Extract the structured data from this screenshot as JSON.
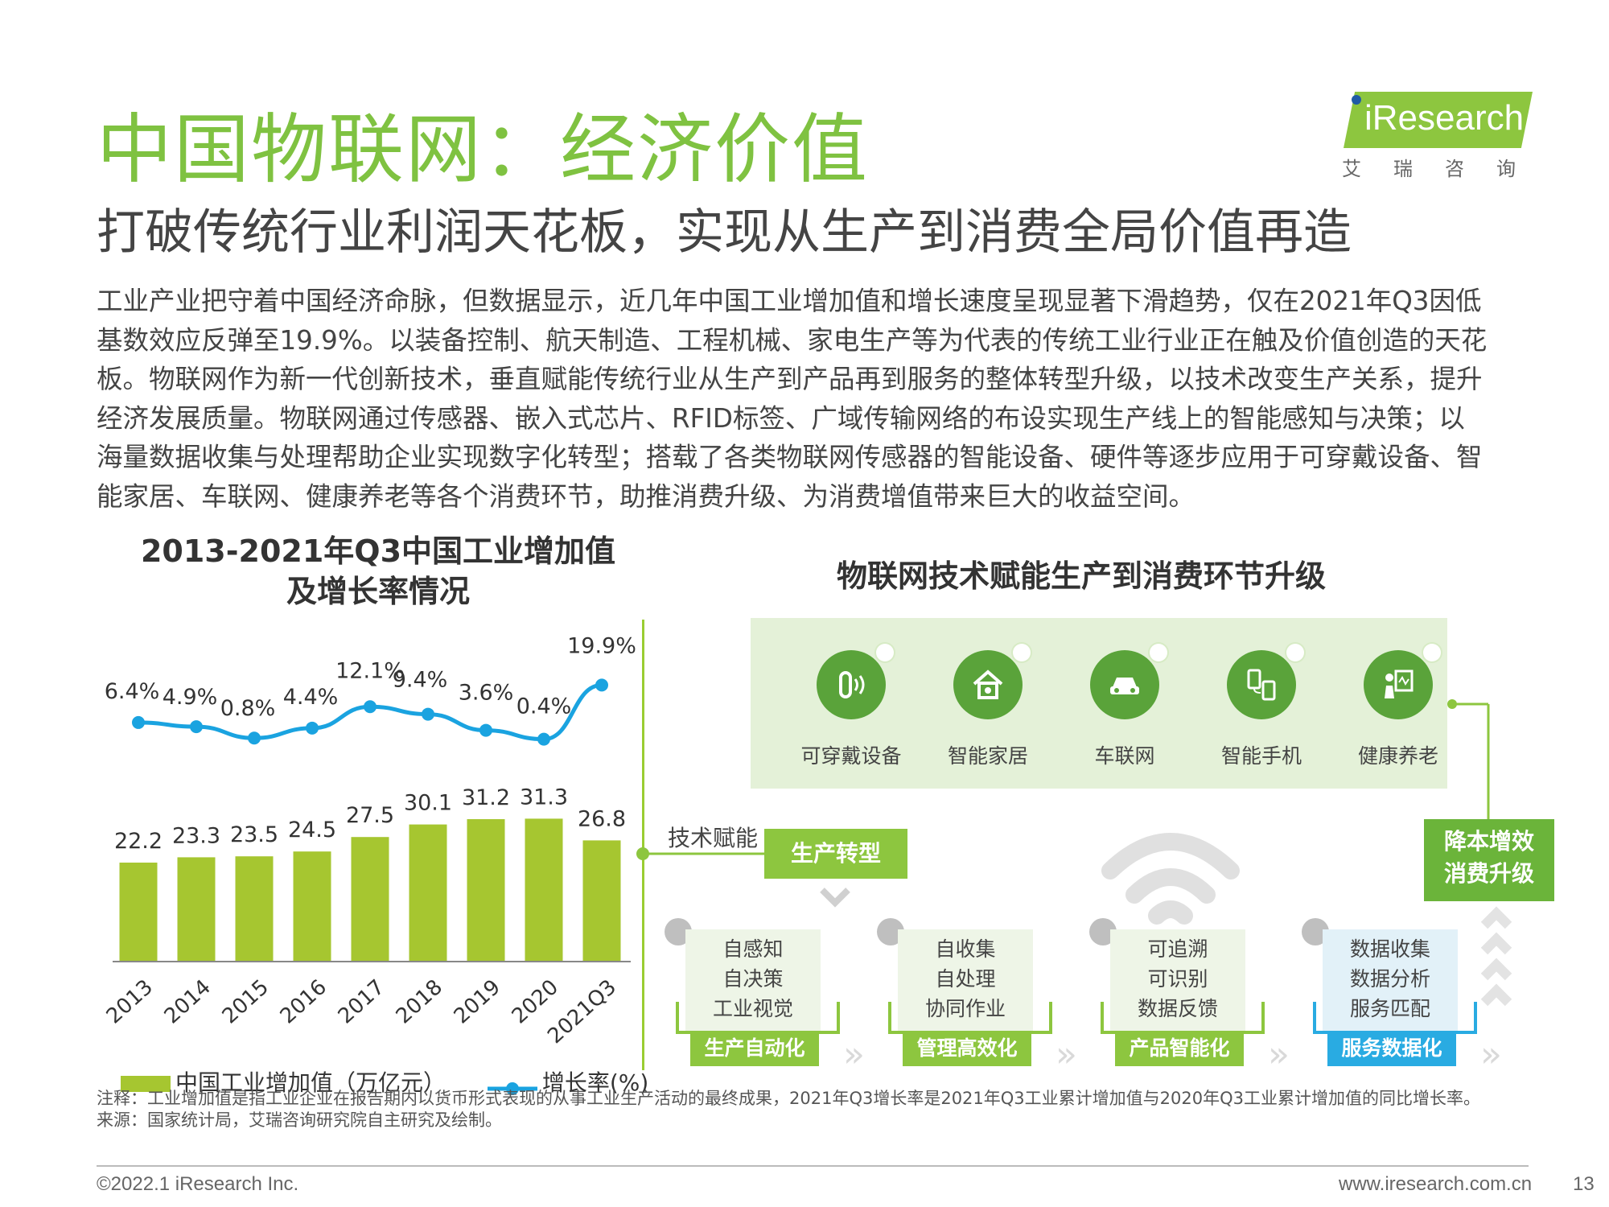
{
  "header": {
    "title": "中国物联网：经济价值",
    "subtitle": "打破传统行业利润天花板，实现从生产到消费全局价值再造",
    "logo_text": "iResearch",
    "logo_sub": "艾瑞咨询"
  },
  "body_text": "工业产业把守着中国经济命脉，但数据显示，近几年中国工业增加值和增长速度呈现显著下滑趋势，仅在2021年Q3因低\n基数效应反弹至19.9%。以装备控制、航天制造、工程机械、家电生产等为代表的传统工业行业正在触及价值创造的天花\n板。物联网作为新一代创新技术，垂直赋能传统行业从生产到产品再到服务的整体转型升级，以技术改变生产关系，提升\n经济发展质量。物联网通过传感器、嵌入式芯片、RFID标签、广域传输网络的布设实现生产线上的智能感知与决策；以\n海量数据收集与处理帮助企业实现数字化转型；搭载了各类物联网传感器的智能设备、硬件等逐步应用于可穿戴设备、智\n能家居、车联网、健康养老等各个消费环节，助推消费升级、为消费增值带来巨大的收益空间。",
  "chart_data": {
    "type": "bar",
    "title": "2013-2021年Q3中国工业增加值\n及增长率情况",
    "categories": [
      "2013",
      "2014",
      "2015",
      "2016",
      "2017",
      "2018",
      "2019",
      "2020",
      "2021Q3"
    ],
    "series": [
      {
        "name": "中国工业增加值（万亿元）",
        "type": "bar",
        "values": [
          22.2,
          23.3,
          23.5,
          24.5,
          27.5,
          30.1,
          31.2,
          31.3,
          26.8
        ],
        "color": "#a6c630"
      },
      {
        "name": "增长率(%)",
        "type": "line",
        "values": [
          6.4,
          4.9,
          0.8,
          4.4,
          12.1,
          9.4,
          3.6,
          0.4,
          19.9
        ],
        "color": "#1aa3e0"
      }
    ],
    "bar_labels": [
      "22.2",
      "23.3",
      "23.5",
      "24.5",
      "27.5",
      "30.1",
      "31.2",
      "31.3",
      "26.8"
    ],
    "line_labels": [
      "6.4%",
      "4.9%",
      "0.8%",
      "4.4%",
      "12.1%",
      "9.4%",
      "3.6%",
      "0.4%",
      "19.9%"
    ],
    "legend_position": "bottom",
    "grid": false
  },
  "legend": {
    "bar": "中国工业增加值（万亿元）",
    "line": "增长率(%)"
  },
  "right": {
    "title": "物联网技术赋能生产到消费环节升级",
    "iot_items": [
      {
        "label": "可穿戴设备",
        "icon": "wearable-icon"
      },
      {
        "label": "智能家居",
        "icon": "smart-home-icon"
      },
      {
        "label": "车联网",
        "icon": "car-icon"
      },
      {
        "label": "智能手机",
        "icon": "smartphone-icon"
      },
      {
        "label": "健康养老",
        "icon": "health-icon"
      }
    ],
    "tech_label": "技术赋能",
    "production_label": "生产转型",
    "goal_label": "降本增效\n消费升级",
    "stages": [
      {
        "text": "自感知\n自决策\n工业视觉",
        "label": "生产自动化"
      },
      {
        "text": "自收集\n自处理\n协同作业",
        "label": "管理高效化"
      },
      {
        "text": "可追溯\n可识别\n数据反馈",
        "label": "产品智能化"
      },
      {
        "text": "数据收集\n数据分析\n服务匹配",
        "label": "服务数据化"
      }
    ]
  },
  "notes": {
    "note": "注释：工业增加值是指工业企业在报告期内以货币形式表现的从事工业生产活动的最终成果，2021年Q3增长率是2021年Q3工业累计增加值与2020年Q3工业累计增加值的同比增长率。",
    "source": "来源：国家统计局，艾瑞咨询研究院自主研究及绘制。"
  },
  "footer": {
    "copyright": "©2022.1 iResearch Inc.",
    "website": "www.iresearch.com.cn",
    "page": "13"
  },
  "colors": {
    "title_green": "#7fc241",
    "bar_green": "#a6c630",
    "line_blue": "#1aa3e0",
    "accent_green": "#8dc63f",
    "service_blue": "#29abe2"
  }
}
